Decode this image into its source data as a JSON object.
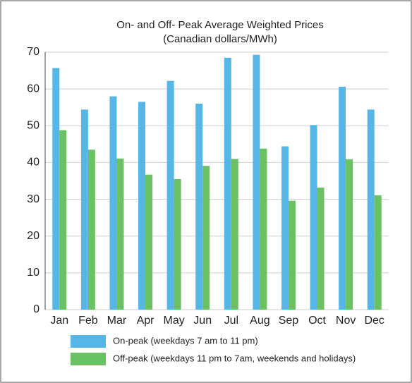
{
  "chart_data": {
    "type": "bar",
    "title": "On- and Off- Peak Average Weighted Prices",
    "subtitle": "(Canadian dollars/MWh)",
    "categories": [
      "Jan",
      "Feb",
      "Mar",
      "Apr",
      "May",
      "Jun",
      "Jul",
      "Aug",
      "Sep",
      "Oct",
      "Nov",
      "Dec"
    ],
    "series": [
      {
        "name": "On-peak (weekdays 7 am to 11 pm)",
        "color": "#56b7e6",
        "values": [
          65.7,
          54.4,
          58,
          56.5,
          62.2,
          56,
          68.5,
          69.3,
          44.4,
          50.2,
          60.6,
          54.4
        ]
      },
      {
        "name": "Off-peak (weekdays 11 pm to 7am, weekends and holidays)",
        "color": "#6cc164",
        "values": [
          48.8,
          43.5,
          41.1,
          36.7,
          35.5,
          39.1,
          41,
          43.8,
          29.6,
          33.2,
          40.9,
          31.1
        ]
      }
    ],
    "ylim": [
      0,
      70
    ],
    "yticks": [
      0,
      10,
      20,
      30,
      40,
      50,
      60,
      70
    ],
    "grid": true
  }
}
